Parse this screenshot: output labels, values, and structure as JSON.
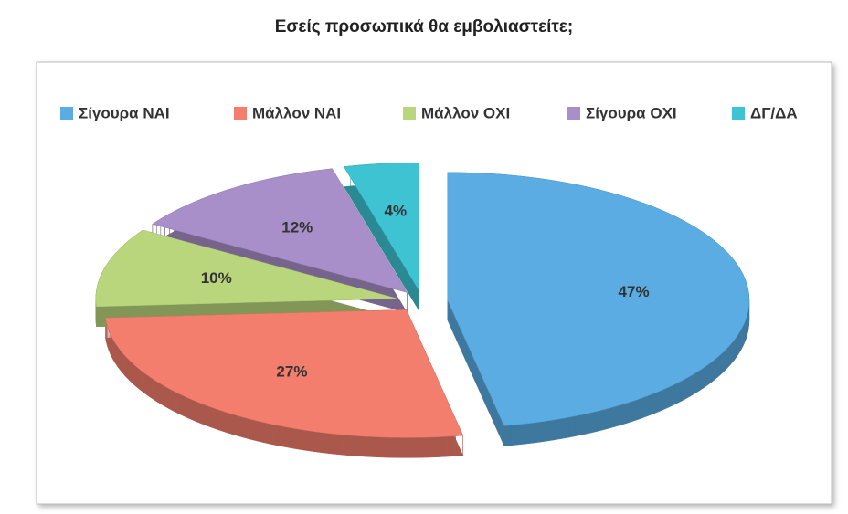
{
  "chart_data": {
    "type": "pie",
    "title": "Εσείς προσωπικά θα εμβολιαστείτε;",
    "categories": [
      "Σίγουρα ΝΑΙ",
      "Μάλλον ΝΑΙ",
      "Μάλλον ΟΧΙ",
      "Σίγουρα ΟΧΙ",
      "ΔΓ/ΔΑ"
    ],
    "values": [
      47,
      27,
      10,
      12,
      4
    ],
    "value_labels": [
      "47%",
      "27%",
      "10%",
      "12%",
      "4%"
    ],
    "colors": [
      "#5aace2",
      "#f47e6d",
      "#b9d67c",
      "#a98fc9",
      "#3ec3d2"
    ],
    "legend": "top"
  }
}
